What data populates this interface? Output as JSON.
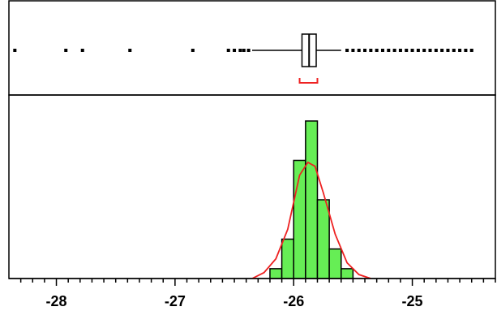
{
  "chart_data": {
    "type": "bar",
    "subtype": "histogram-with-box-plot",
    "title": "",
    "xlabel": "",
    "ylabel": "",
    "xlim": [
      -28.4,
      -24.3
    ],
    "x_ticks": [
      -28,
      -27,
      -26,
      -25
    ],
    "x_tick_labels": [
      "-28",
      "-27",
      "-26",
      "-25"
    ],
    "bin_width": 0.1,
    "histogram": {
      "bins": [
        {
          "start": -26.2,
          "end": -26.1,
          "count": 1
        },
        {
          "start": -26.1,
          "end": -26.0,
          "count": 4
        },
        {
          "start": -26.0,
          "end": -25.9,
          "count": 12
        },
        {
          "start": -25.9,
          "end": -25.8,
          "count": 16
        },
        {
          "start": -25.8,
          "end": -25.7,
          "count": 8
        },
        {
          "start": -25.7,
          "end": -25.6,
          "count": 3
        },
        {
          "start": -25.6,
          "end": -25.5,
          "count": 1
        }
      ],
      "color": "#66ee55"
    },
    "density_curve": {
      "color": "#ee2222",
      "points": [
        [
          -26.35,
          0
        ],
        [
          -26.25,
          0.6
        ],
        [
          -26.15,
          2.0
        ],
        [
          -26.05,
          5.0
        ],
        [
          -25.95,
          10.5
        ],
        [
          -25.88,
          11.8
        ],
        [
          -25.82,
          11.4
        ],
        [
          -25.75,
          8.7
        ],
        [
          -25.65,
          4.5
        ],
        [
          -25.55,
          1.6
        ],
        [
          -25.45,
          0.4
        ],
        [
          -25.35,
          0
        ]
      ]
    },
    "box_plot": {
      "q1": -25.93,
      "median": -25.87,
      "q3": -25.81,
      "whisker_low": -26.35,
      "whisker_high": -25.6,
      "shortest_half": [
        -25.95,
        -25.8
      ],
      "shortest_half_color": "#ee2222",
      "outliers": [
        -28.35,
        -27.92,
        -27.78,
        -27.38,
        -26.85,
        -26.55,
        -26.5,
        -26.45,
        -26.42,
        -26.38,
        -25.55,
        -25.5,
        -25.45,
        -25.4,
        -25.35,
        -25.3,
        -25.25,
        -25.2,
        -25.15,
        -25.1,
        -25.05,
        -25.0,
        -24.95,
        -24.9,
        -24.85,
        -24.8,
        -24.75,
        -24.7,
        -24.65,
        -24.6,
        -24.55,
        -24.5
      ]
    },
    "grid": false,
    "legend": "none"
  }
}
